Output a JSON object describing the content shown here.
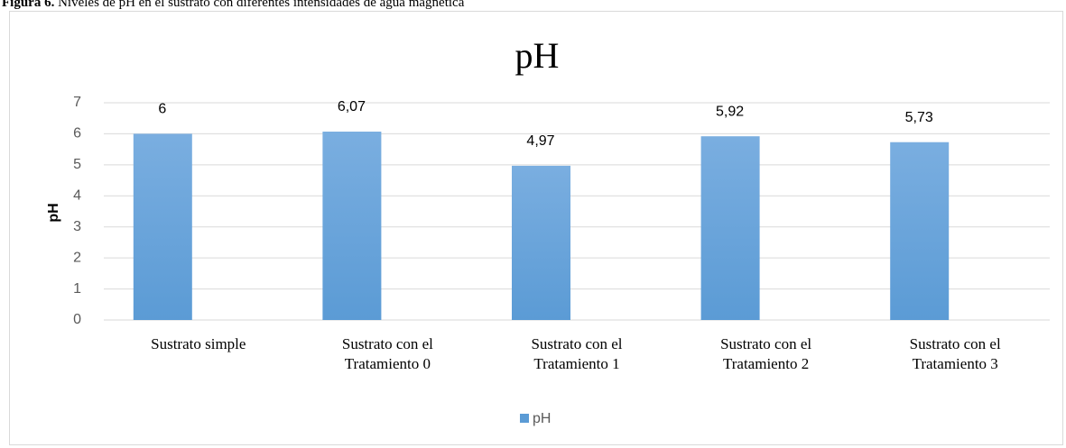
{
  "figure": {
    "label": "Figura 6.",
    "caption": "Niveles de pH en el sustrato con diferentes intensidades de agua magnética"
  },
  "chart_data": {
    "type": "bar",
    "title": "pH",
    "y_label": "pH",
    "categories": [
      "Sustrato simple",
      "Sustrato con el Tratamiento 0",
      "Sustrato con el Tratamiento 1",
      "Sustrato con el Tratamiento 2",
      "Sustrato con el Tratamiento 3"
    ],
    "series": [
      {
        "name": "pH",
        "color": "#5b9bd5",
        "values": [
          6,
          6.07,
          4.97,
          5.92,
          5.73
        ],
        "value_labels": [
          "6",
          "6,07",
          "4,97",
          "5,92",
          "5,73"
        ]
      }
    ],
    "ylim": [
      0,
      7
    ],
    "yticks": [
      0,
      1,
      2,
      3,
      4,
      5,
      6,
      7
    ],
    "grid": true,
    "legend": "bottom"
  }
}
